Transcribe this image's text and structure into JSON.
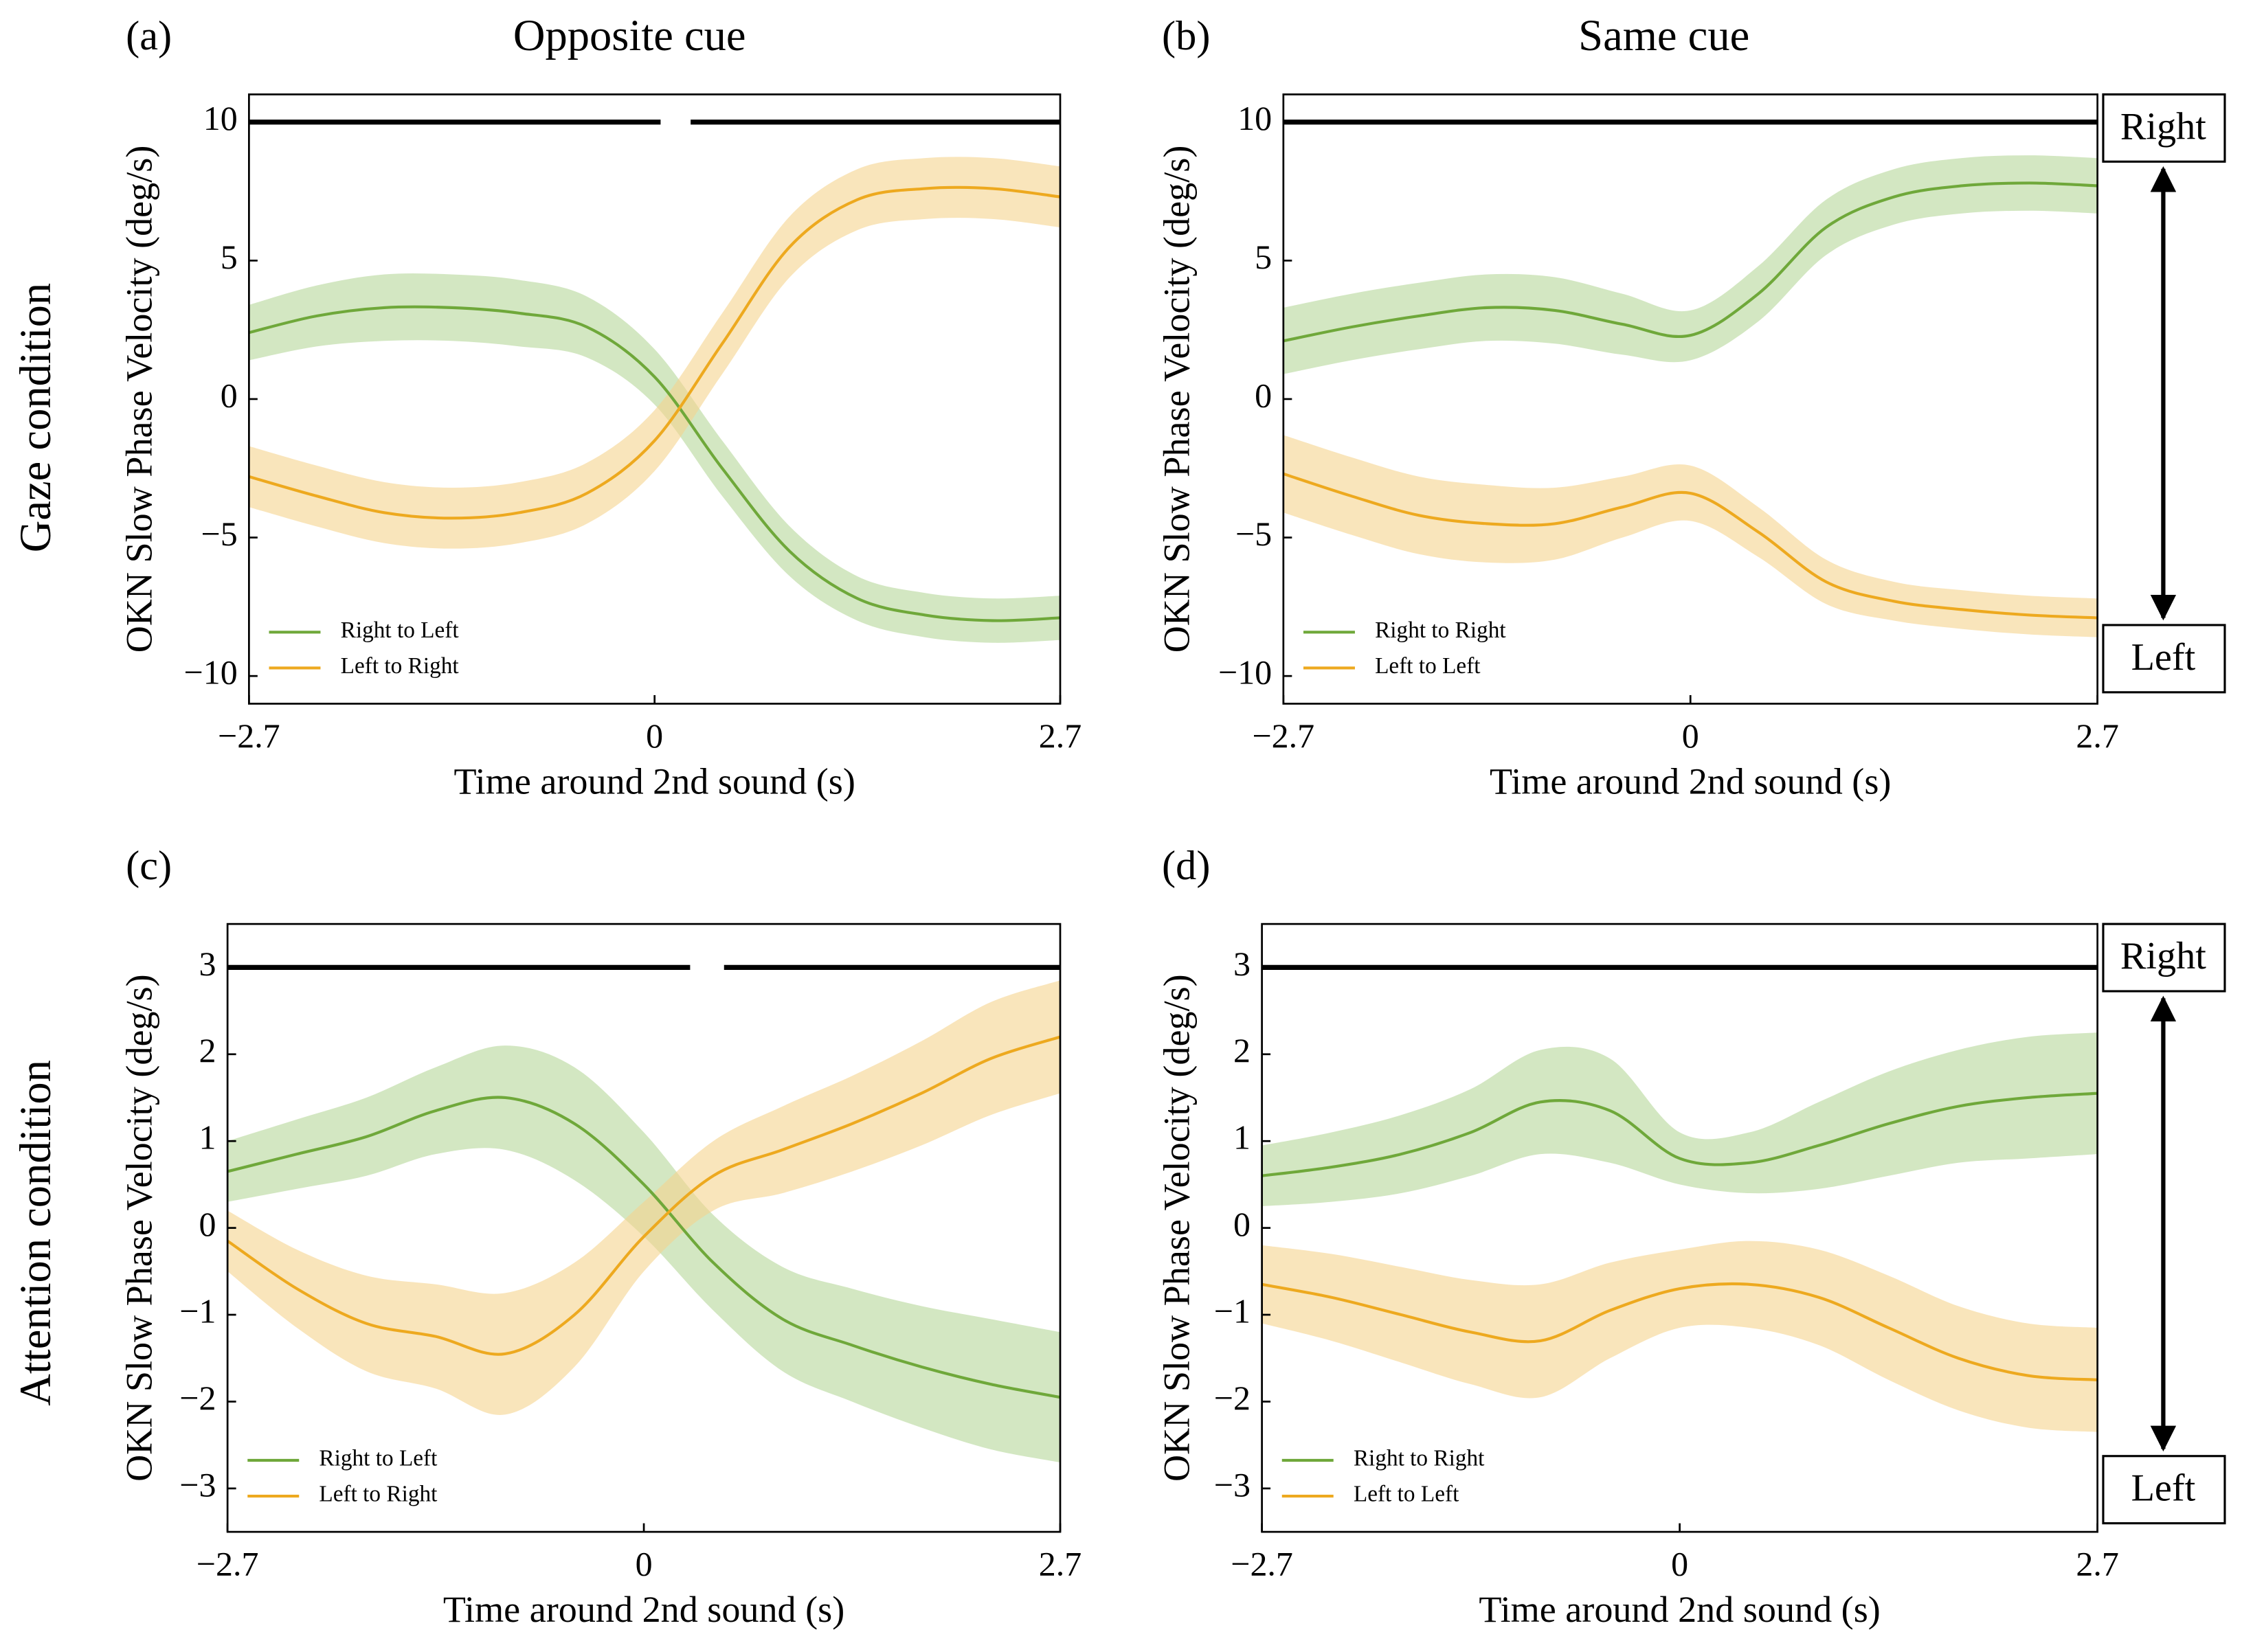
{
  "chart_data": [
    {
      "type": "line",
      "panel": "(a)",
      "title": "Opposite cue",
      "xlabel": "Time around 2nd sound (s)",
      "ylabel": "OKN Slow Phase Velocity (deg/s)",
      "x": [
        -2.7,
        -2.25,
        -1.8,
        -1.35,
        -0.9,
        -0.45,
        0,
        0.45,
        0.9,
        1.35,
        1.8,
        2.25,
        2.7
      ],
      "xlim": [
        -2.7,
        2.7
      ],
      "xticks": [
        {
          "value": -2.7,
          "label": "−2.7"
        },
        0,
        2.7
      ],
      "ylim": [
        -11,
        11
      ],
      "yticks": [
        10,
        5,
        0,
        {
          "value": -5,
          "label": "−5"
        },
        {
          "value": -10,
          "label": "−10"
        }
      ],
      "legend": "lower left",
      "significance": {
        "y": 10,
        "segments": [
          [
            -2.7,
            0.04
          ],
          [
            0.24,
            2.7
          ]
        ]
      },
      "series": [
        {
          "name": "Right to Left",
          "color": "#6fa83a",
          "band_color": "#b5d79a",
          "values": [
            2.4,
            3.0,
            3.3,
            3.3,
            3.1,
            2.6,
            0.8,
            -2.5,
            -5.5,
            -7.2,
            -7.8,
            -8.0,
            -7.9
          ],
          "upper": [
            3.4,
            4.1,
            4.5,
            4.5,
            4.3,
            3.7,
            1.8,
            -1.5,
            -4.6,
            -6.4,
            -7.0,
            -7.2,
            -7.1
          ],
          "lower": [
            1.4,
            1.9,
            2.1,
            2.1,
            1.9,
            1.5,
            -0.2,
            -3.5,
            -6.4,
            -8.0,
            -8.6,
            -8.8,
            -8.7
          ]
        },
        {
          "name": "Left to Right",
          "color": "#eda91f",
          "band_color": "#f5d48e",
          "values": [
            -2.8,
            -3.5,
            -4.1,
            -4.3,
            -4.1,
            -3.4,
            -1.5,
            2.0,
            5.5,
            7.2,
            7.6,
            7.6,
            7.3
          ],
          "upper": [
            -1.7,
            -2.4,
            -3.0,
            -3.2,
            -3.0,
            -2.3,
            -0.4,
            3.1,
            6.6,
            8.3,
            8.7,
            8.7,
            8.4
          ],
          "lower": [
            -3.9,
            -4.6,
            -5.2,
            -5.4,
            -5.2,
            -4.5,
            -2.6,
            0.9,
            4.4,
            6.1,
            6.5,
            6.5,
            6.2
          ]
        }
      ]
    },
    {
      "type": "line",
      "panel": "(b)",
      "title": "Same cue",
      "xlabel": "Time around 2nd sound (s)",
      "ylabel": "OKN Slow Phase Velocity (deg/s)",
      "x": [
        -2.7,
        -2.25,
        -1.8,
        -1.35,
        -0.9,
        -0.45,
        0,
        0.45,
        0.9,
        1.35,
        1.8,
        2.25,
        2.7
      ],
      "xlim": [
        -2.7,
        2.7
      ],
      "xticks": [
        {
          "value": -2.7,
          "label": "−2.7"
        },
        0,
        2.7
      ],
      "ylim": [
        -11,
        11
      ],
      "yticks": [
        10,
        5,
        0,
        {
          "value": -5,
          "label": "−5"
        },
        {
          "value": -10,
          "label": "−10"
        }
      ],
      "legend": "lower left",
      "significance": {
        "y": 10,
        "segments": [
          [
            -2.7,
            2.7
          ]
        ]
      },
      "series": [
        {
          "name": "Right to Right",
          "color": "#6fa83a",
          "band_color": "#b5d79a",
          "values": [
            2.1,
            2.6,
            3.0,
            3.3,
            3.2,
            2.7,
            2.3,
            3.8,
            6.2,
            7.3,
            7.7,
            7.8,
            7.7
          ],
          "upper": [
            3.3,
            3.8,
            4.2,
            4.5,
            4.4,
            3.8,
            3.2,
            4.8,
            7.2,
            8.3,
            8.7,
            8.8,
            8.7
          ],
          "lower": [
            0.9,
            1.4,
            1.8,
            2.1,
            2.0,
            1.6,
            1.4,
            2.8,
            5.2,
            6.3,
            6.7,
            6.8,
            6.7
          ]
        },
        {
          "name": "Left to Left",
          "color": "#eda91f",
          "band_color": "#f5d48e",
          "values": [
            -2.7,
            -3.5,
            -4.2,
            -4.5,
            -4.5,
            -3.9,
            -3.4,
            -4.8,
            -6.6,
            -7.3,
            -7.6,
            -7.8,
            -7.9
          ],
          "upper": [
            -1.3,
            -2.1,
            -2.8,
            -3.1,
            -3.2,
            -2.8,
            -2.4,
            -3.9,
            -5.8,
            -6.6,
            -6.9,
            -7.1,
            -7.2
          ],
          "lower": [
            -4.1,
            -4.9,
            -5.6,
            -5.9,
            -5.8,
            -5.0,
            -4.4,
            -5.7,
            -7.4,
            -8.0,
            -8.3,
            -8.5,
            -8.6
          ]
        }
      ]
    },
    {
      "type": "line",
      "panel": "(c)",
      "xlabel": "Time around 2nd sound (s)",
      "ylabel": "OKN Slow Phase Velocity (deg/s)",
      "x": [
        -2.7,
        -2.25,
        -1.8,
        -1.35,
        -0.9,
        -0.45,
        0,
        0.45,
        0.9,
        1.35,
        1.8,
        2.25,
        2.7
      ],
      "xlim": [
        -2.7,
        2.7
      ],
      "xticks": [
        {
          "value": -2.7,
          "label": "−2.7"
        },
        0,
        2.7
      ],
      "ylim": [
        -3.5,
        3.5
      ],
      "yticks": [
        3,
        2,
        1,
        0,
        {
          "value": -1,
          "label": "−1"
        },
        {
          "value": -2,
          "label": "−2"
        },
        {
          "value": -3,
          "label": "−3"
        }
      ],
      "legend": "lower left",
      "significance": {
        "y": 3,
        "segments": [
          [
            -2.7,
            0.3
          ],
          [
            0.52,
            2.7
          ]
        ]
      },
      "series": [
        {
          "name": "Right to Left",
          "color": "#6fa83a",
          "band_color": "#b5d79a",
          "values": [
            0.65,
            0.85,
            1.05,
            1.35,
            1.5,
            1.2,
            0.5,
            -0.4,
            -1.05,
            -1.35,
            -1.6,
            -1.8,
            -1.95
          ],
          "upper": [
            1.0,
            1.25,
            1.5,
            1.85,
            2.1,
            1.85,
            1.1,
            0.15,
            -0.45,
            -0.7,
            -0.9,
            -1.05,
            -1.2
          ],
          "lower": [
            0.3,
            0.45,
            0.6,
            0.85,
            0.9,
            0.55,
            -0.1,
            -0.95,
            -1.65,
            -2.0,
            -2.3,
            -2.55,
            -2.7
          ]
        },
        {
          "name": "Left to Right",
          "color": "#eda91f",
          "band_color": "#f5d48e",
          "values": [
            -0.15,
            -0.7,
            -1.1,
            -1.25,
            -1.45,
            -1.0,
            -0.1,
            0.6,
            0.9,
            1.2,
            1.55,
            1.95,
            2.2
          ],
          "upper": [
            0.2,
            -0.25,
            -0.55,
            -0.65,
            -0.75,
            -0.4,
            0.3,
            1.0,
            1.4,
            1.75,
            2.15,
            2.6,
            2.85
          ],
          "lower": [
            -0.5,
            -1.15,
            -1.65,
            -1.85,
            -2.15,
            -1.6,
            -0.5,
            0.2,
            0.4,
            0.65,
            0.95,
            1.3,
            1.55
          ]
        }
      ]
    },
    {
      "type": "line",
      "panel": "(d)",
      "xlabel": "Time around 2nd sound (s)",
      "ylabel": "OKN Slow Phase Velocity (deg/s)",
      "x": [
        -2.7,
        -2.25,
        -1.8,
        -1.35,
        -0.9,
        -0.45,
        0,
        0.45,
        0.9,
        1.35,
        1.8,
        2.25,
        2.7
      ],
      "xlim": [
        -2.7,
        2.7
      ],
      "xticks": [
        {
          "value": -2.7,
          "label": "−2.7"
        },
        0,
        2.7
      ],
      "ylim": [
        -3.5,
        3.5
      ],
      "yticks": [
        3,
        2,
        1,
        0,
        {
          "value": -1,
          "label": "−1"
        },
        {
          "value": -2,
          "label": "−2"
        },
        {
          "value": -3,
          "label": "−3"
        }
      ],
      "legend": "lower left",
      "significance": {
        "y": 3,
        "segments": [
          [
            -2.7,
            2.7
          ]
        ]
      },
      "series": [
        {
          "name": "Right to Right",
          "color": "#6fa83a",
          "band_color": "#b5d79a",
          "values": [
            0.6,
            0.7,
            0.85,
            1.1,
            1.45,
            1.35,
            0.8,
            0.75,
            0.95,
            1.2,
            1.4,
            1.5,
            1.55
          ],
          "upper": [
            0.95,
            1.1,
            1.3,
            1.6,
            2.05,
            1.95,
            1.1,
            1.1,
            1.45,
            1.8,
            2.05,
            2.2,
            2.25
          ],
          "lower": [
            0.25,
            0.3,
            0.4,
            0.6,
            0.85,
            0.75,
            0.5,
            0.4,
            0.45,
            0.6,
            0.75,
            0.8,
            0.85
          ]
        },
        {
          "name": "Left to Left",
          "color": "#eda91f",
          "band_color": "#f5d48e",
          "values": [
            -0.65,
            -0.8,
            -1.0,
            -1.2,
            -1.3,
            -0.95,
            -0.7,
            -0.65,
            -0.8,
            -1.15,
            -1.5,
            -1.7,
            -1.75
          ],
          "upper": [
            -0.2,
            -0.3,
            -0.45,
            -0.6,
            -0.65,
            -0.4,
            -0.25,
            -0.15,
            -0.25,
            -0.55,
            -0.9,
            -1.1,
            -1.15
          ],
          "lower": [
            -1.1,
            -1.3,
            -1.55,
            -1.8,
            -1.95,
            -1.5,
            -1.15,
            -1.15,
            -1.35,
            -1.75,
            -2.1,
            -2.3,
            -2.35
          ]
        }
      ]
    }
  ],
  "row_labels": [
    "Gaze condition",
    "Attention condition"
  ],
  "direction_labels": [
    "Right",
    "Left"
  ]
}
